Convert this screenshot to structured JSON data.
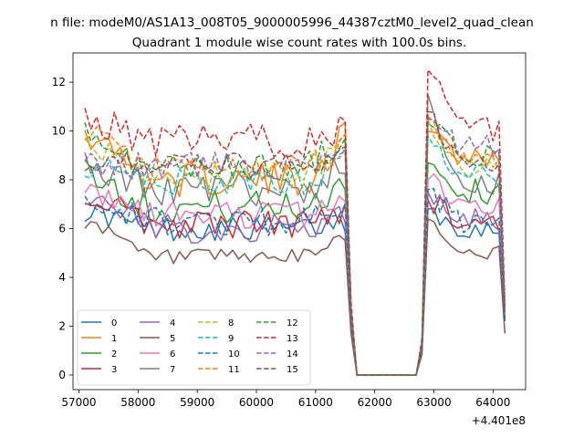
{
  "suptitle": "n file: modeM0/AS1A13_008T05_9000005996_44387cztM0_level2_quad_clean",
  "title": "Quadrant 1 module wise count rates with 100.0s bins.",
  "axis_offset": "+4.401e8",
  "chart_data": {
    "type": "line",
    "title": "Quadrant 1 module wise count rates with 100.0s bins.",
    "xlabel": "",
    "ylabel": "",
    "x_offset_label": "+4.401e8",
    "xlim": [
      56900,
      64550
    ],
    "ylim": [
      -0.6,
      13.2
    ],
    "xticks": [
      57000,
      58000,
      59000,
      60000,
      61000,
      62000,
      63000,
      64000
    ],
    "yticks": [
      0,
      2,
      4,
      6,
      8,
      10,
      12
    ],
    "xtick_labels": [
      "57000",
      "58000",
      "59000",
      "60000",
      "61000",
      "62000",
      "63000",
      "64000"
    ],
    "ytick_labels": [
      "0",
      "2",
      "4",
      "6",
      "8",
      "10",
      "12"
    ],
    "grid": false,
    "legend_position": "lower-left",
    "legend_columns": 4,
    "segments": [
      {
        "x_start": 57100,
        "x_end": 61500
      },
      {
        "x_start": 62900,
        "x_end": 64100
      }
    ],
    "gap": {
      "x": [
        61600,
        61700,
        62700,
        62800
      ]
    },
    "series": [
      {
        "name": "0",
        "color": "#1f77b4",
        "dash": "solid",
        "level": 6.0,
        "amp": 0.5,
        "start": 6.8,
        "peak1": 6.3,
        "peak2": 6.8,
        "end": 6.0,
        "drop": 2.2
      },
      {
        "name": "1",
        "color": "#ff7f0e",
        "dash": "solid",
        "level": 8.0,
        "amp": 0.7,
        "start": 10.1,
        "peak1": 9.8,
        "peak2": 10.0,
        "end": 9.0,
        "drop": 2.5
      },
      {
        "name": "2",
        "color": "#2ca02c",
        "dash": "solid",
        "level": 6.9,
        "amp": 0.7,
        "start": 8.5,
        "peak1": 8.0,
        "peak2": 8.7,
        "end": 7.5,
        "drop": 2.4
      },
      {
        "name": "3",
        "color": "#d62728",
        "dash": "solid",
        "level": 6.2,
        "amp": 0.6,
        "start": 7.4,
        "peak1": 6.9,
        "peak2": 7.2,
        "end": 6.3,
        "drop": 2.3
      },
      {
        "name": "4",
        "color": "#9467bd",
        "dash": "solid",
        "level": 6.0,
        "amp": 0.6,
        "start": 7.3,
        "peak1": 6.6,
        "peak2": 7.5,
        "end": 6.4,
        "drop": 2.3
      },
      {
        "name": "5",
        "color": "#8c564b",
        "dash": "solid",
        "level": 4.8,
        "amp": 0.35,
        "start": 6.3,
        "peak1": 5.8,
        "peak2": 6.4,
        "end": 5.0,
        "drop": 1.7
      },
      {
        "name": "6",
        "color": "#e377c2",
        "dash": "solid",
        "level": 6.6,
        "amp": 0.6,
        "start": 7.5,
        "peak1": 7.2,
        "peak2": 8.0,
        "end": 7.0,
        "drop": 2.4
      },
      {
        "name": "7",
        "color": "#7f7f7f",
        "dash": "solid",
        "level": 7.6,
        "amp": 0.7,
        "start": 8.6,
        "peak1": 8.5,
        "peak2": 11.5,
        "end": 7.8,
        "drop": 2.6
      },
      {
        "name": "8",
        "color": "#bcbd22",
        "dash": "dashed",
        "level": 8.2,
        "amp": 0.6,
        "start": 9.3,
        "peak1": 9.5,
        "peak2": 10.5,
        "end": 8.5,
        "drop": 2.6
      },
      {
        "name": "9",
        "color": "#17becf",
        "dash": "dashed",
        "level": 7.9,
        "amp": 0.6,
        "start": 8.6,
        "peak1": 9.0,
        "peak2": 9.8,
        "end": 8.2,
        "drop": 2.5
      },
      {
        "name": "10",
        "color": "#1f77b4",
        "dash": "dashed",
        "level": 6.3,
        "amp": 0.6,
        "start": 7.3,
        "peak1": 6.5,
        "peak2": 7.6,
        "end": 6.2,
        "drop": 2.3
      },
      {
        "name": "11",
        "color": "#ff7f0e",
        "dash": "dashed",
        "level": 8.4,
        "amp": 0.6,
        "start": 9.9,
        "peak1": 9.5,
        "peak2": 10.6,
        "end": 8.8,
        "drop": 2.8
      },
      {
        "name": "12",
        "color": "#2ca02c",
        "dash": "dashed",
        "level": 8.5,
        "amp": 0.6,
        "start": 9.9,
        "peak1": 9.9,
        "peak2": 10.3,
        "end": 9.0,
        "drop": 2.7
      },
      {
        "name": "13",
        "color": "#d62728",
        "dash": "dashed",
        "level": 9.6,
        "amp": 0.7,
        "start": 10.6,
        "peak1": 10.1,
        "peak2": 12.5,
        "end": 10.0,
        "drop": 3.0
      },
      {
        "name": "14",
        "color": "#9467bd",
        "dash": "dashed",
        "level": 8.6,
        "amp": 0.6,
        "start": 8.5,
        "peak1": 9.3,
        "peak2": 10.5,
        "end": 9.4,
        "drop": 2.7
      },
      {
        "name": "15",
        "color": "#8c564b",
        "dash": "dashed",
        "level": 8.6,
        "amp": 0.5,
        "start": 8.7,
        "peak1": 9.0,
        "peak2": 10.8,
        "end": 8.6,
        "drop": 2.6
      }
    ]
  }
}
